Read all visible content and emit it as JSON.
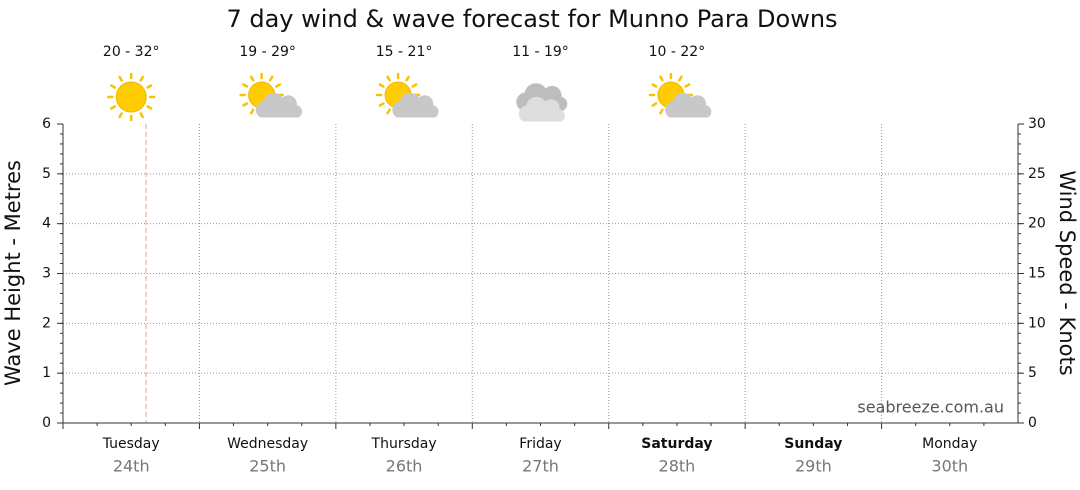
{
  "chart_data": {
    "type": "line",
    "title": "7 day wind & wave forecast for Munno Para Downs",
    "categories": [
      "Tuesday",
      "Wednesday",
      "Thursday",
      "Friday",
      "Saturday",
      "Sunday",
      "Monday"
    ],
    "dates": [
      "24th",
      "25th",
      "26th",
      "27th",
      "28th",
      "29th",
      "30th"
    ],
    "temperatures": [
      "20 - 32°",
      "19 - 29°",
      "15 - 21°",
      "11 - 19°",
      "10 - 22°"
    ],
    "y_label": "Wave Height - Metres",
    "y2_label": "Wind Speed - Knots",
    "ylim": [
      0,
      6
    ],
    "yticks": [
      0,
      1,
      2,
      3,
      4,
      5,
      6
    ],
    "y2lim": [
      0,
      30
    ],
    "y2ticks": [
      0,
      5,
      10,
      15,
      20,
      25,
      30
    ],
    "grid": true,
    "watermark": "seabreeze.com.au"
  }
}
